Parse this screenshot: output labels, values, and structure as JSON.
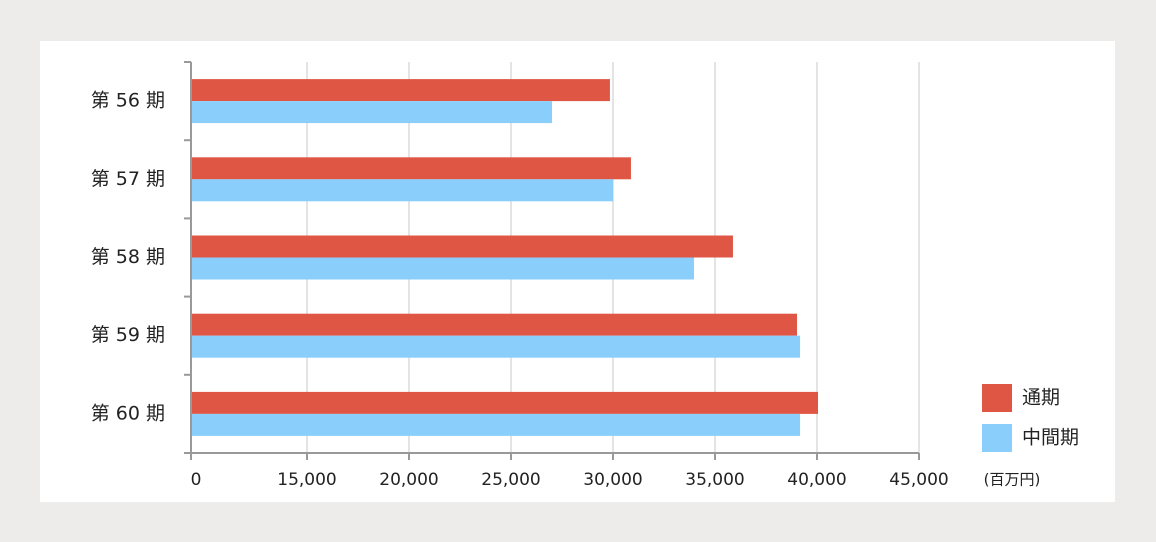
{
  "chart_data": {
    "type": "bar",
    "orientation": "horizontal",
    "categories": [
      "第 56 期",
      "第 57 期",
      "第 58 期",
      "第 59 期",
      "第 60 期"
    ],
    "series": [
      {
        "name": "通期",
        "color": "#e05644",
        "values": [
          29850,
          30880,
          35880,
          39020,
          40050
        ]
      },
      {
        "name": "中間期",
        "color": "#8acffc",
        "values": [
          27010,
          30000,
          33970,
          39170,
          39170
        ]
      }
    ],
    "xlim": [
      0,
      45000
    ],
    "xticks": [
      0,
      {
        "value": 15000,
        "label": "15,000"
      },
      {
        "value": 20000,
        "label": "20,000"
      },
      {
        "value": 25000,
        "label": "25,000"
      },
      {
        "value": 30000,
        "label": "30,000"
      },
      {
        "value": 35000,
        "label": "35,000"
      },
      {
        "value": 40000,
        "label": "40,000"
      },
      {
        "value": 45000,
        "label": "45,000"
      }
    ],
    "unit_label": "(百万円)",
    "grid": true,
    "legend": "right"
  }
}
